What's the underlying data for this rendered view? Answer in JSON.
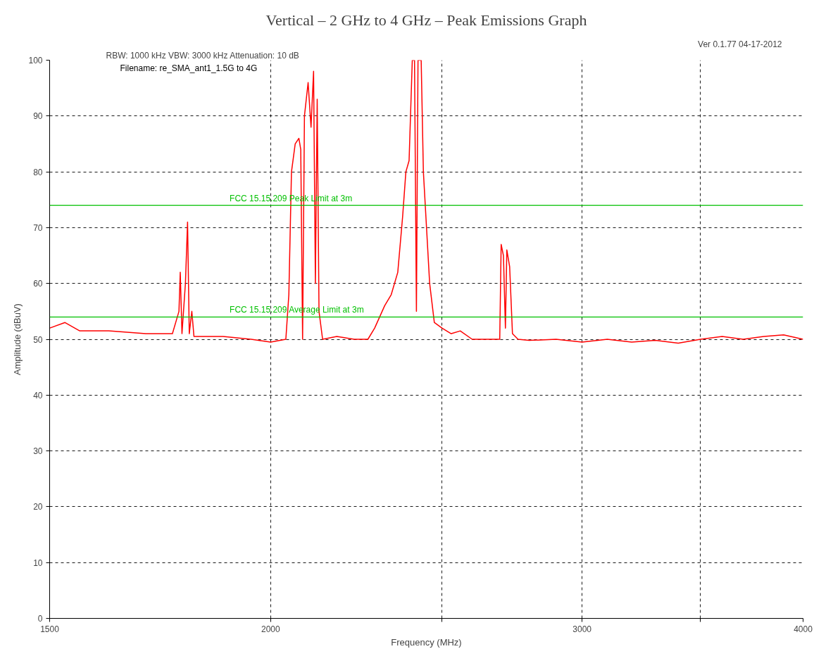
{
  "chart_data": {
    "type": "line",
    "title": "Vertical – 2 GHz to 4 GHz – Peak Emissions Graph",
    "xlabel": "Frequency (MHz)",
    "ylabel": "Amplitude (dBuV)",
    "annotations": [
      "RBW: 1000 kHz  VBW: 3000 kHz    Attenuation: 10 dB",
      "Ver 0.1.77    04-17-2012",
      "Filename: re_SMA_ant1_1.5G to 4G"
    ],
    "log": "x",
    "xlim": [
      1500,
      4000
    ],
    "xticks": [
      1500,
      2000,
      {
        "value": 2500,
        "label": null
      },
      3000,
      {
        "value": 3500,
        "label": null
      },
      4000
    ],
    "ylim": [
      0,
      100
    ],
    "yticks": [
      0,
      10,
      20,
      30,
      40,
      50,
      60,
      70,
      80,
      90,
      100
    ],
    "grid": true,
    "line_style": "solid",
    "ref_lines": [
      {
        "axis": "y",
        "value": 74,
        "label": "FCC 15.15.209 Peak Limit at 3m",
        "color": "#00c000"
      },
      {
        "axis": "y",
        "value": 54,
        "label": "FCC 15.15.209 Average Limit at 3m",
        "color": "#00c000"
      }
    ],
    "series": [
      {
        "color": "#ff0000",
        "x": [
          1500,
          1530,
          1560,
          1620,
          1700,
          1760,
          1775,
          1778,
          1782,
          1790,
          1795,
          1799,
          1805,
          1810,
          1880,
          1950,
          2000,
          2040,
          2048,
          2055,
          2065,
          2075,
          2080,
          2085,
          2090,
          2100,
          2108,
          2115,
          2120,
          2125,
          2130,
          2140,
          2180,
          2230,
          2270,
          2290,
          2320,
          2340,
          2360,
          2375,
          2385,
          2395,
          2405,
          2412,
          2418,
          2423,
          2433,
          2440,
          2450,
          2460,
          2475,
          2500,
          2530,
          2560,
          2600,
          2670,
          2695,
          2700,
          2708,
          2715,
          2720,
          2730,
          2740,
          2760,
          2800,
          2900,
          3000,
          3100,
          3200,
          3300,
          3400,
          3500,
          3600,
          3700,
          3800,
          3900,
          4000
        ],
        "values": [
          52,
          53,
          51.5,
          51.5,
          51,
          51,
          55,
          62,
          51,
          60,
          71,
          51,
          55,
          50.5,
          50.5,
          50,
          49.5,
          50,
          58,
          80,
          85,
          86,
          84,
          50,
          90,
          96,
          88,
          98,
          60,
          93,
          55,
          50,
          50.5,
          50,
          50,
          52,
          56,
          58,
          62,
          72,
          80,
          82,
          100,
          100,
          55,
          100,
          100,
          80,
          70,
          60,
          53,
          52,
          51,
          51.5,
          50,
          50,
          50,
          67,
          65,
          52,
          66,
          63,
          51,
          50,
          49.8,
          50,
          49.5,
          50,
          49.5,
          49.8,
          49.3,
          50,
          50.5,
          50,
          50.5,
          50.8,
          50
        ]
      }
    ]
  }
}
